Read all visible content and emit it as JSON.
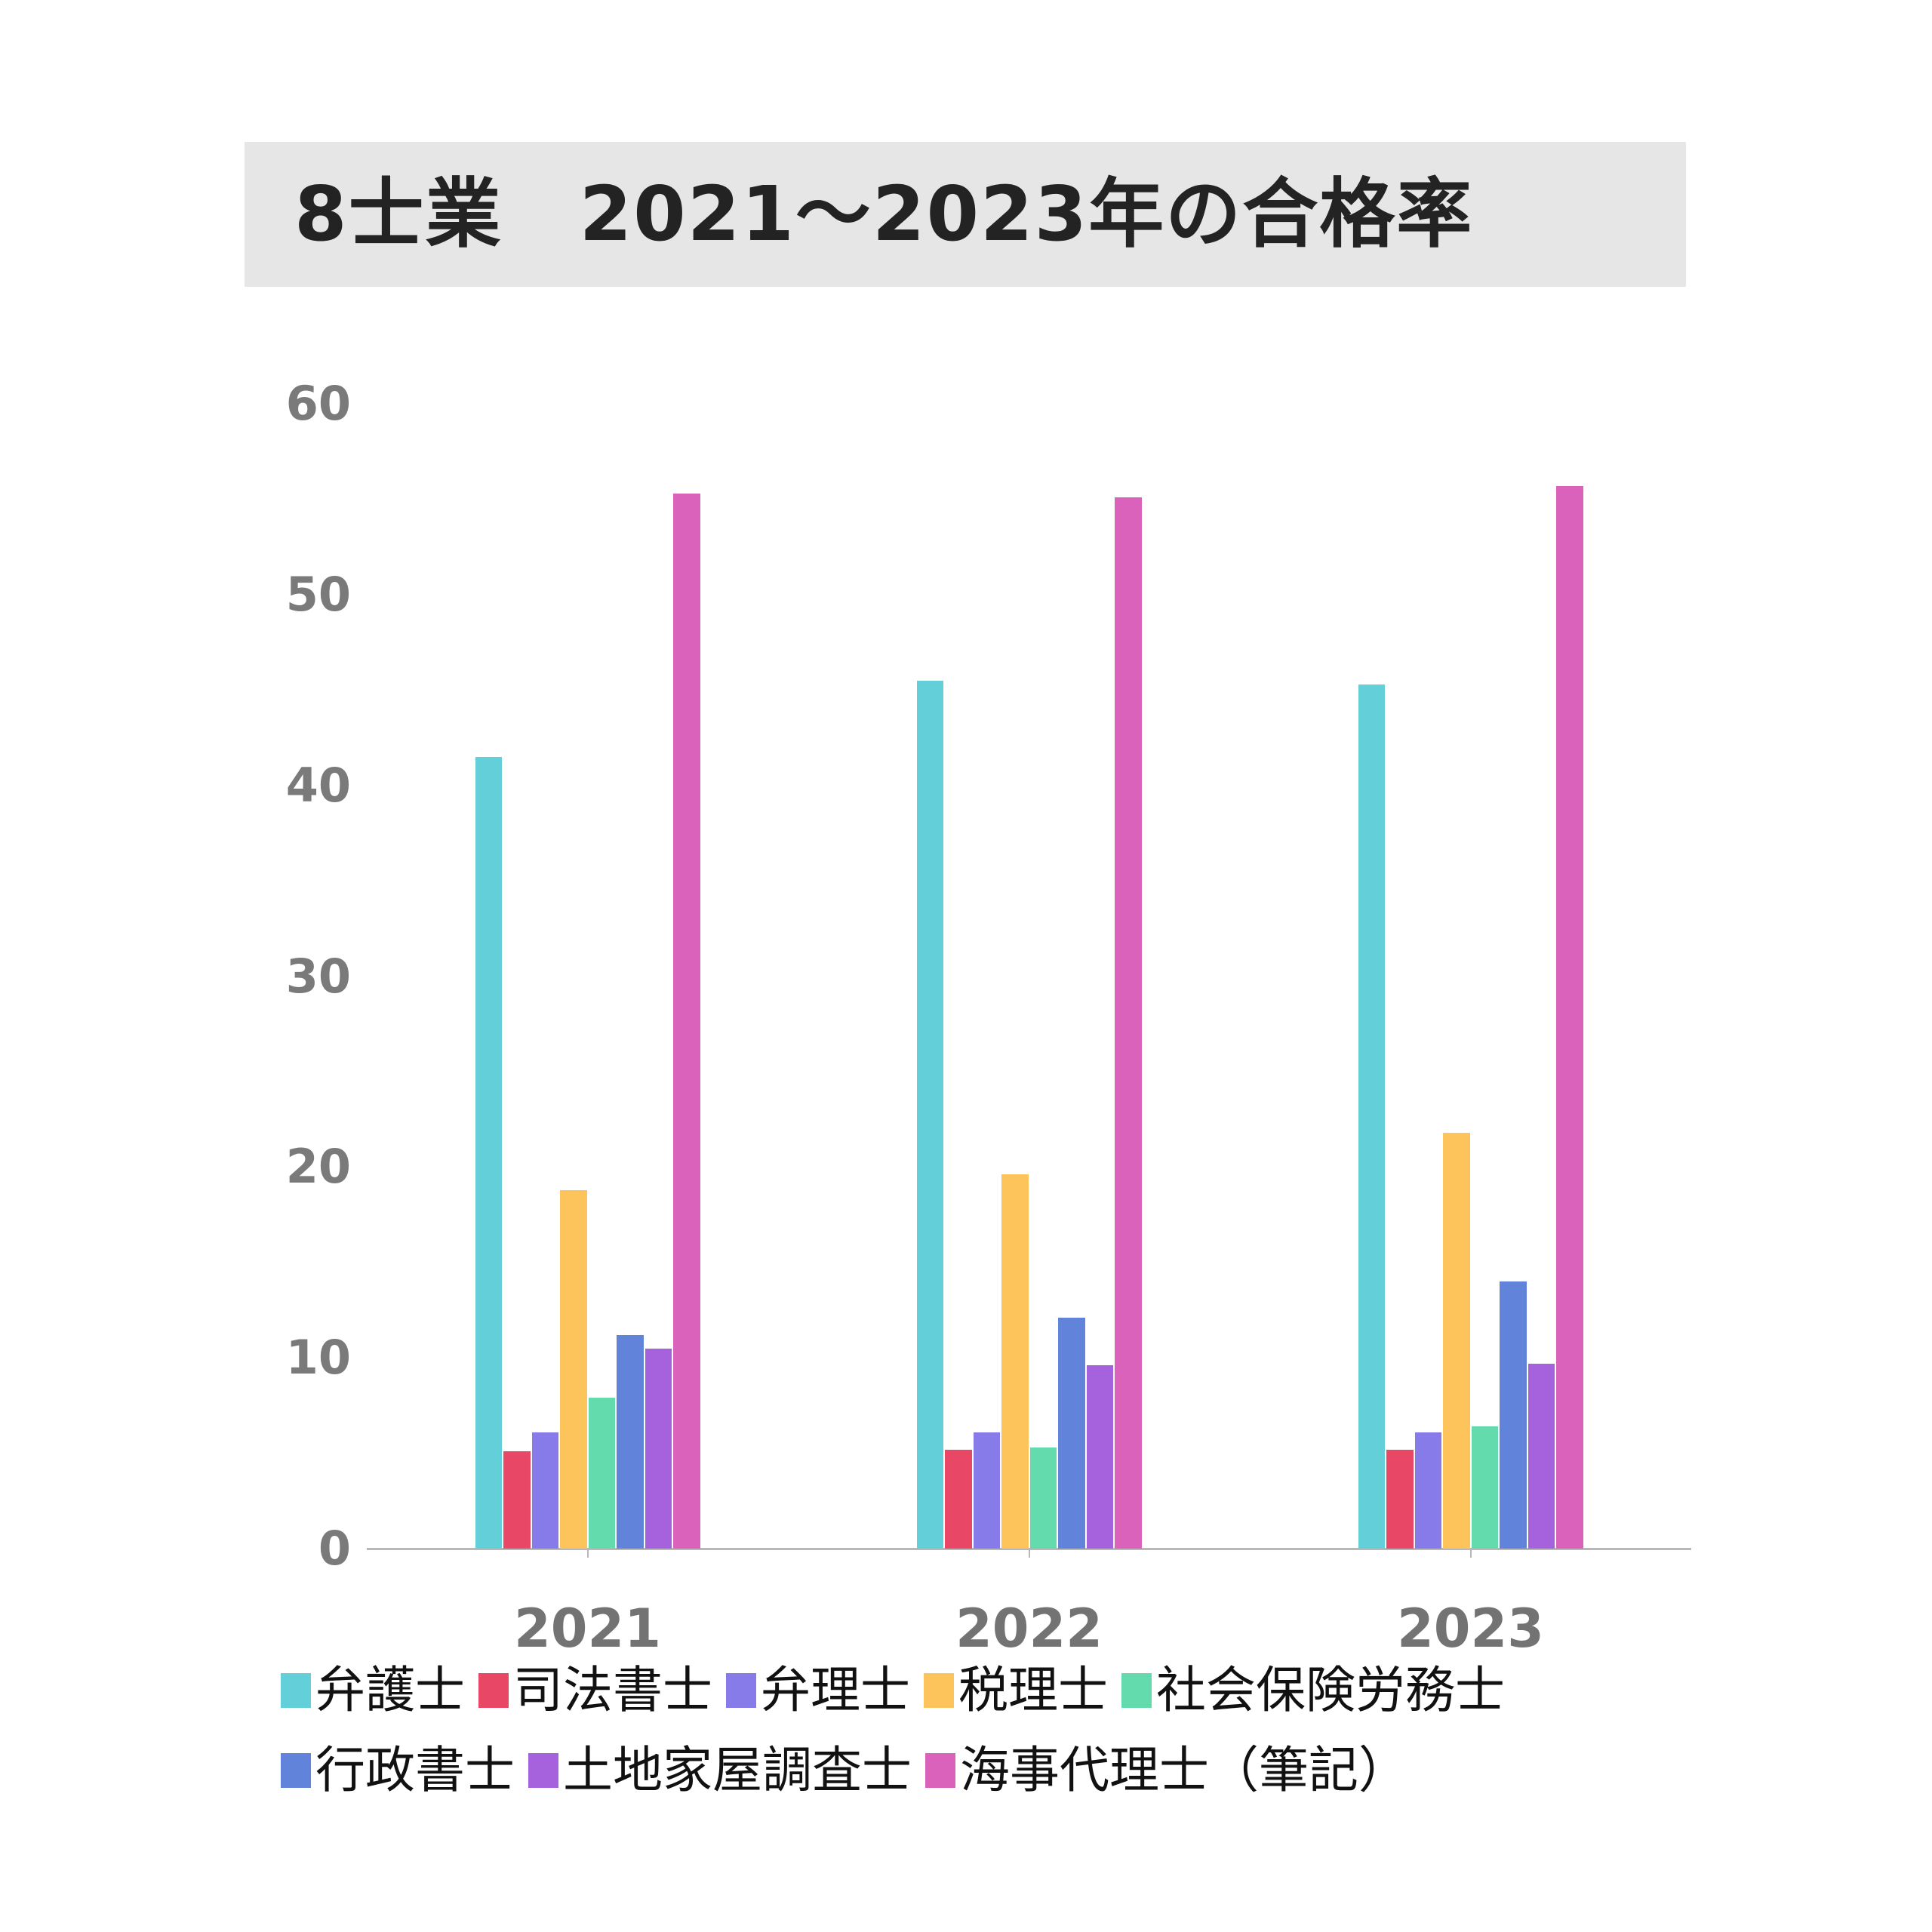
{
  "title": "8士業　2021～2023年の合格率",
  "y_axis": {
    "ticks": [
      "60",
      "50",
      "40",
      "30",
      "20",
      "10",
      "0"
    ]
  },
  "x_axis": {
    "categories": [
      "2021",
      "2022",
      "2023"
    ]
  },
  "legend": {
    "items": [
      {
        "label": "弁護士",
        "color": "#63d0d9"
      },
      {
        "label": "司法書士",
        "color": "#e84865"
      },
      {
        "label": "弁理士",
        "color": "#877bea"
      },
      {
        "label": "税理士",
        "color": "#fdc45b"
      },
      {
        "label": "社会保険労務士",
        "color": "#63dbad"
      },
      {
        "label": "行政書士",
        "color": "#6283da"
      },
      {
        "label": "土地家屋調査士",
        "color": "#a562dc"
      },
      {
        "label": "海事代理士（筆記）",
        "color": "#da62bb"
      }
    ]
  },
  "chart_data": {
    "type": "bar",
    "title": "8士業　2021～2023年の合格率",
    "xlabel": "",
    "ylabel": "",
    "ylim": [
      0,
      60
    ],
    "yticks": [
      0,
      10,
      20,
      30,
      40,
      50,
      60
    ],
    "grid": false,
    "legend_position": "bottom",
    "categories": [
      "2021",
      "2022",
      "2023"
    ],
    "series": [
      {
        "name": "弁護士",
        "color": "#63d0d9",
        "values": [
          41.5,
          45.5,
          45.3
        ]
      },
      {
        "name": "司法書士",
        "color": "#e84865",
        "values": [
          5.1,
          5.2,
          5.2
        ]
      },
      {
        "name": "弁理士",
        "color": "#877bea",
        "values": [
          6.1,
          6.1,
          6.1
        ]
      },
      {
        "name": "税理士",
        "color": "#fdc45b",
        "values": [
          18.8,
          19.6,
          21.8
        ]
      },
      {
        "name": "社会保険労務士",
        "color": "#63dbad",
        "values": [
          7.9,
          5.3,
          6.4
        ]
      },
      {
        "name": "行政書士",
        "color": "#6283da",
        "values": [
          11.2,
          12.1,
          14.0
        ]
      },
      {
        "name": "土地家屋調査士",
        "color": "#a562dc",
        "values": [
          10.5,
          9.6,
          9.7
        ]
      },
      {
        "name": "海事代理士（筆記）",
        "color": "#da62bb",
        "values": [
          55.3,
          55.1,
          55.7
        ]
      }
    ]
  }
}
